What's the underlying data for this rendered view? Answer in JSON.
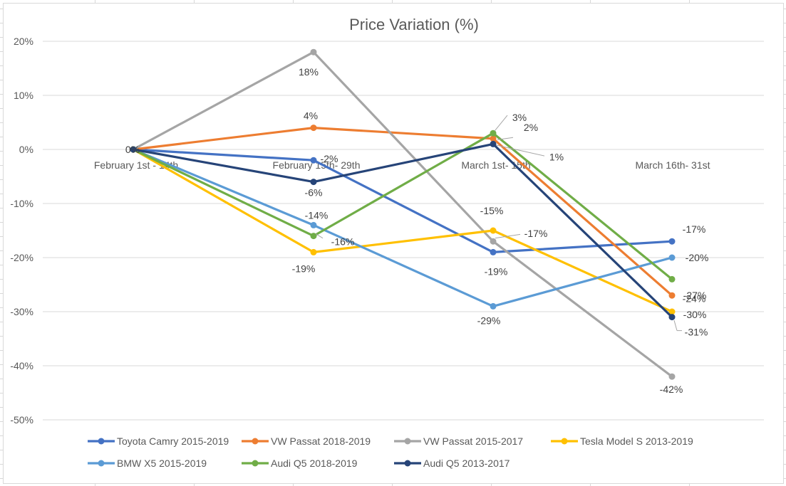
{
  "chart_data": {
    "type": "line",
    "title": "Price Variation (%)",
    "categories": [
      "February 1st - 14th",
      "February 15th- 29th",
      "March 1st- 15th",
      "March 16th- 31st"
    ],
    "ylim": [
      -50,
      20
    ],
    "yticks": [
      20,
      10,
      0,
      -10,
      -20,
      -30,
      -40,
      -50
    ],
    "ytick_labels": [
      "20%",
      "10%",
      "0%",
      "-10%",
      "-20%",
      "-30%",
      "-40%",
      "-50%"
    ],
    "grid": true,
    "legend_position": "bottom",
    "series": [
      {
        "name": "Toyota Camry 2015-2019",
        "color": "#4472C4",
        "values": [
          0,
          -2,
          -19,
          -17
        ],
        "labels": [
          "",
          "-2%",
          "-19%",
          "-17%"
        ]
      },
      {
        "name": "VW Passat 2018-2019",
        "color": "#ED7D31",
        "values": [
          0,
          4,
          2,
          -27
        ],
        "labels": [
          "",
          "4%",
          "2%",
          "-27%"
        ]
      },
      {
        "name": "VW Passat 2015-2017",
        "color": "#A5A5A5",
        "values": [
          0,
          18,
          -17,
          -42
        ],
        "labels": [
          "",
          "18%",
          "",
          "-42%"
        ]
      },
      {
        "name": "Tesla Model S 2013-2019",
        "color": "#FFC000",
        "values": [
          0,
          -19,
          -15,
          -30
        ],
        "labels": [
          "",
          "-19%",
          "-15%",
          "-30%"
        ]
      },
      {
        "name": "BMW X5 2015-2019",
        "color": "#5B9BD5",
        "values": [
          0,
          -14,
          -29,
          -20
        ],
        "labels": [
          "",
          "-14%",
          "-29%",
          "-20%"
        ]
      },
      {
        "name": "Audi Q5 2018-2019",
        "color": "#70AD47",
        "values": [
          0,
          -16,
          3,
          -24
        ],
        "labels": [
          "",
          "-16%",
          "3%",
          "-24%"
        ]
      },
      {
        "name": "Audi Q5 2013-2017",
        "color": "#264478",
        "values": [
          0,
          -6,
          1,
          -31
        ],
        "labels": [
          "0%",
          "-6%",
          "1%",
          "-31%"
        ]
      }
    ],
    "extra_labels": [
      "-17%"
    ]
  }
}
